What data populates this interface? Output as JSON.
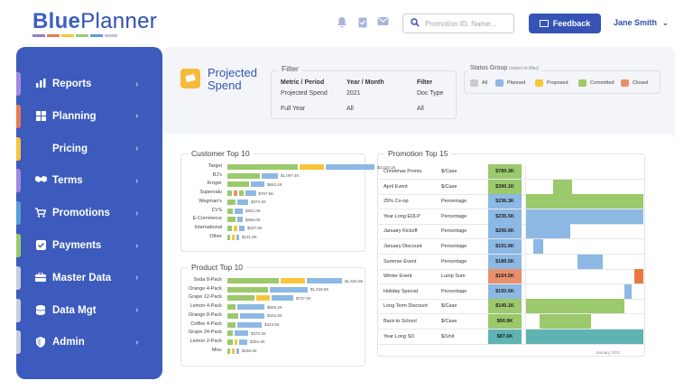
{
  "header": {
    "logo_part1": "Blue",
    "logo_part2": "Planner",
    "logo_bar_colors": [
      "#8f7fd8",
      "#e77c4e",
      "#f6c53c",
      "#9bc96b",
      "#5aa0d8",
      "#c1c6d6"
    ],
    "icons": [
      "bell-icon",
      "clipboard-icon",
      "mail-icon"
    ],
    "search": {
      "value": "",
      "placeholder": "Promotion ID, Name..."
    },
    "feedback_label": "Feedback",
    "user_name": "Jane Smith"
  },
  "sidebar": {
    "items": [
      {
        "label": "Reports",
        "icon": "bar-chart-icon",
        "accent": "#a18bdc"
      },
      {
        "label": "Planning",
        "icon": "grid-icon",
        "accent": "#e97b50"
      },
      {
        "label": "Pricing",
        "icon": "",
        "accent": "#f6c53c"
      },
      {
        "label": "Terms",
        "icon": "handshake-icon",
        "accent": "#a18bdc"
      },
      {
        "label": "Promotions",
        "icon": "cart-icon",
        "accent": "#5aa0d8"
      },
      {
        "label": "Payments",
        "icon": "checkbox-icon",
        "accent": "#9bc96b"
      },
      {
        "label": "Master Data",
        "icon": "briefcase-icon",
        "accent": "#c9cede"
      },
      {
        "label": "Data Mgt",
        "icon": "database-icon",
        "accent": "#c9cede"
      },
      {
        "label": "Admin",
        "icon": "shield-icon",
        "accent": "#c9cede"
      }
    ]
  },
  "page_title": "Projected Spend",
  "filter": {
    "title": "Filter",
    "headers": [
      "Metric / Period",
      "Year / Month",
      "Filter"
    ],
    "row1": [
      "Projected Spend",
      "2021",
      "Doc Type"
    ],
    "row2": [
      "Full Year",
      "All",
      "All"
    ]
  },
  "status_group": {
    "title": "Status Group",
    "hint": "(select to filter)",
    "items": [
      {
        "label": "All",
        "color": "#c9cbd3"
      },
      {
        "label": "Planned",
        "color": "#8db8e4"
      },
      {
        "label": "Proposed",
        "color": "#f6c53c"
      },
      {
        "label": "Committed",
        "color": "#9bc96b"
      },
      {
        "label": "Closed",
        "color": "#e8906a"
      }
    ]
  },
  "colors": {
    "green": "#9bc96b",
    "yellow": "#f6c53c",
    "blue": "#8db8e4",
    "orange": "#e8906a",
    "teal": "#5fb3b3",
    "red": "#e8783f"
  },
  "customer_top10": {
    "title": "Customer Top 10",
    "rows": [
      {
        "label": "Target",
        "segs": [
          {
            "c": "green",
            "v": 0.26
          },
          {
            "c": "yellow",
            "v": 0.09
          },
          {
            "c": "blue",
            "v": 0.18
          }
        ],
        "value": "$3,224.1K"
      },
      {
        "label": "BJ's",
        "segs": [
          {
            "c": "green",
            "v": 0.12
          },
          {
            "c": "blue",
            "v": 0.06
          }
        ],
        "value": "$1,097.4K"
      },
      {
        "label": "Kroger",
        "segs": [
          {
            "c": "green",
            "v": 0.08
          },
          {
            "c": "blue",
            "v": 0.05
          }
        ],
        "value": "$863.4K"
      },
      {
        "label": "Supervalu",
        "segs": [
          {
            "c": "green",
            "v": 0.015
          },
          {
            "c": "orange",
            "v": 0.015
          },
          {
            "c": "green",
            "v": 0.015
          },
          {
            "c": "blue",
            "v": 0.04
          }
        ],
        "value": "$767.5K"
      },
      {
        "label": "Wegman's",
        "segs": [
          {
            "c": "green",
            "v": 0.03
          },
          {
            "c": "blue",
            "v": 0.04
          }
        ],
        "value": "$374.3K"
      },
      {
        "label": "CVS",
        "segs": [
          {
            "c": "green",
            "v": 0.02
          },
          {
            "c": "blue",
            "v": 0.03
          }
        ],
        "value": "$351.0K"
      },
      {
        "label": "E-Commerce",
        "segs": [
          {
            "c": "green",
            "v": 0.03
          },
          {
            "c": "blue",
            "v": 0.02
          }
        ],
        "value": "$256.0K"
      },
      {
        "label": "International",
        "segs": [
          {
            "c": "green",
            "v": 0.015
          },
          {
            "c": "yellow",
            "v": 0.015
          },
          {
            "c": "blue",
            "v": 0.02
          }
        ],
        "value": "$227.0K"
      },
      {
        "label": "Other",
        "segs": [
          {
            "c": "green",
            "v": 0.01
          },
          {
            "c": "yellow",
            "v": 0.01
          },
          {
            "c": "blue",
            "v": 0.01
          }
        ],
        "value": "$131.8K"
      }
    ]
  },
  "product_top10": {
    "title": "Product Top 10",
    "rows": [
      {
        "label": "Soda 8-Pack",
        "segs": [
          {
            "c": "green",
            "v": 0.19
          },
          {
            "c": "yellow",
            "v": 0.09
          },
          {
            "c": "blue",
            "v": 0.13
          }
        ],
        "value": "$1,634.0K"
      },
      {
        "label": "Orange 4-Pack",
        "segs": [
          {
            "c": "green",
            "v": 0.15
          },
          {
            "c": "blue",
            "v": 0.14
          }
        ],
        "value": "$1,018.5K"
      },
      {
        "label": "Grape 12-Pack",
        "segs": [
          {
            "c": "green",
            "v": 0.1
          },
          {
            "c": "yellow",
            "v": 0.05
          },
          {
            "c": "blue",
            "v": 0.08
          }
        ],
        "value": "$737.0K"
      },
      {
        "label": "Lemon 4-Pack",
        "segs": [
          {
            "c": "green",
            "v": 0.03
          },
          {
            "c": "blue",
            "v": 0.1
          }
        ],
        "value": "$506.2K"
      },
      {
        "label": "Orange 8-Pack",
        "segs": [
          {
            "c": "green",
            "v": 0.04
          },
          {
            "c": "blue",
            "v": 0.09
          }
        ],
        "value": "$434.3K"
      },
      {
        "label": "Coffee 4-Pack",
        "segs": [
          {
            "c": "green",
            "v": 0.03
          },
          {
            "c": "blue",
            "v": 0.09
          }
        ],
        "value": "$423.5K"
      },
      {
        "label": "Grape 24-Pack",
        "segs": [
          {
            "c": "green",
            "v": 0.02
          },
          {
            "c": "blue",
            "v": 0.05
          }
        ],
        "value": "$370.2K"
      },
      {
        "label": "Lemon 2-Pack",
        "segs": [
          {
            "c": "green",
            "v": 0.02
          },
          {
            "c": "yellow",
            "v": 0.01
          },
          {
            "c": "blue",
            "v": 0.03
          }
        ],
        "value": "$304.3K"
      },
      {
        "label": "Misc",
        "segs": [
          {
            "c": "green",
            "v": 0.01
          },
          {
            "c": "yellow",
            "v": 0.01
          },
          {
            "c": "blue",
            "v": 0.01
          }
        ],
        "value": "$168.4K"
      }
    ]
  },
  "promotion_top15": {
    "title": "Promotion Top 15",
    "footer": "January 2021",
    "rows": [
      {
        "name": "Christmas Promo",
        "unit": "$/Case",
        "value": "$789.3K",
        "vcolor": "green",
        "bars": []
      },
      {
        "name": "April Event",
        "unit": "$/Case",
        "value": "$390.1K",
        "vcolor": "green",
        "bars": [
          {
            "c": "green",
            "s": 0.24,
            "e": 0.4
          }
        ]
      },
      {
        "name": "25% Co-op",
        "unit": "Percentage",
        "value": "$236.3K",
        "vcolor": "blue",
        "bars": [
          {
            "c": "green",
            "s": 0,
            "e": 1
          }
        ]
      },
      {
        "name": "Year Long EDLP",
        "unit": "Percentage",
        "value": "$235.5K",
        "vcolor": "blue",
        "bars": [
          {
            "c": "blue",
            "s": 0,
            "e": 1
          }
        ]
      },
      {
        "name": "January Kickoff",
        "unit": "Percentage",
        "value": "$206.6K",
        "vcolor": "blue",
        "bars": [
          {
            "c": "blue",
            "s": 0,
            "e": 0.38
          }
        ]
      },
      {
        "name": "January Discount",
        "unit": "Percentage",
        "value": "$191.6K",
        "vcolor": "blue",
        "bars": [
          {
            "c": "blue",
            "s": 0.07,
            "e": 0.15
          }
        ]
      },
      {
        "name": "Summer Event",
        "unit": "Percentage",
        "value": "$189.5K",
        "vcolor": "blue",
        "bars": [
          {
            "c": "blue",
            "s": 0.44,
            "e": 0.66
          }
        ]
      },
      {
        "name": "Winter Event",
        "unit": "Lump Sum",
        "value": "$164.5K",
        "vcolor": "orange",
        "bars": [
          {
            "c": "red",
            "s": 0.92,
            "e": 1
          }
        ]
      },
      {
        "name": "Holiday Special",
        "unit": "Percentage",
        "value": "$150.6K",
        "vcolor": "blue",
        "bars": [
          {
            "c": "blue",
            "s": 0.84,
            "e": 0.9
          }
        ]
      },
      {
        "name": "Long Term Discount",
        "unit": "$/Case",
        "value": "$145.1K",
        "vcolor": "green",
        "bars": [
          {
            "c": "green",
            "s": 0,
            "e": 0.84
          }
        ]
      },
      {
        "name": "Back to School",
        "unit": "$/Case",
        "value": "$90.9K",
        "vcolor": "green",
        "bars": [
          {
            "c": "green",
            "s": 0.12,
            "e": 0.56
          }
        ]
      },
      {
        "name": "Year Long SD",
        "unit": "$/Unit",
        "value": "$87.6K",
        "vcolor": "teal",
        "bars": [
          {
            "c": "teal",
            "s": 0,
            "e": 1
          }
        ]
      }
    ]
  }
}
